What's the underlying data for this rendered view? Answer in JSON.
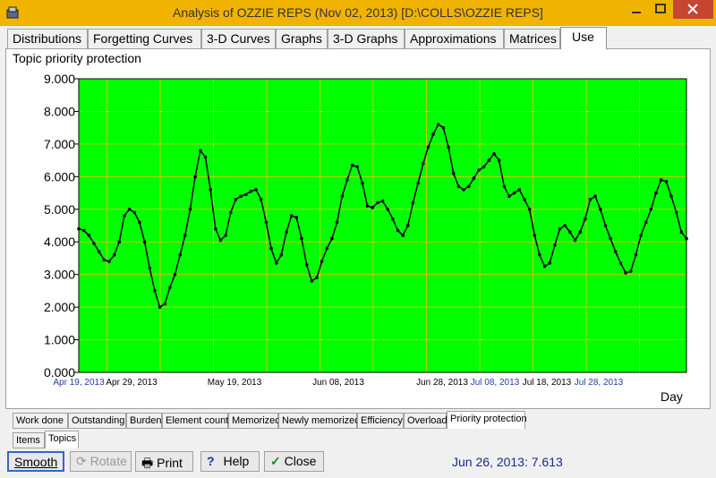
{
  "window": {
    "title": "Analysis of OZZIE REPS (Nov 02, 2013) [D:\\COLLS\\OZZIE REPS]"
  },
  "tabs": [
    {
      "label": "Distributions"
    },
    {
      "label": "Forgetting Curves"
    },
    {
      "label": "3-D Curves"
    },
    {
      "label": "Graphs"
    },
    {
      "label": "3-D Graphs"
    },
    {
      "label": "Approximations"
    },
    {
      "label": "Matrices"
    },
    {
      "label": "Use"
    }
  ],
  "active_tab": "Use",
  "panel": {
    "title": "Topic priority protection",
    "x_axis_label": "Day"
  },
  "chart_data": {
    "type": "line",
    "title": "Topic priority protection",
    "xlabel": "Day",
    "ylabel": "",
    "ylim": [
      0,
      9
    ],
    "y_ticks": [
      "0.000",
      "1.000",
      "2.000",
      "3.000",
      "4.000",
      "5.000",
      "6.000",
      "7.000",
      "8.000",
      "9.000"
    ],
    "x_ticks": [
      {
        "label": "Apr 19, 2013",
        "color": "#1f3fa0"
      },
      {
        "label": "Apr 29, 2013",
        "color": "#000000"
      },
      {
        "label": "May 19, 2013",
        "color": "#000000"
      },
      {
        "label": "Jun 08, 2013",
        "color": "#000000"
      },
      {
        "label": "Jun 28, 2013",
        "color": "#000000"
      },
      {
        "label": "Jul 08, 2013",
        "color": "#1f3fa0"
      },
      {
        "label": "Jul 18, 2013",
        "color": "#000000"
      },
      {
        "label": "Jul 28, 2013",
        "color": "#1f3fa0"
      }
    ],
    "background_color": "#00ff00",
    "grid_color": "#c8c800",
    "line_color": "#000000",
    "grid": true,
    "series": [
      {
        "values": [
          4.4,
          4.35,
          4.2,
          3.95,
          3.7,
          3.45,
          3.4,
          3.6,
          4.0,
          4.8,
          5.0,
          4.9,
          4.6,
          4.0,
          3.2,
          2.5,
          2.0,
          2.1,
          2.6,
          3.0,
          3.6,
          4.2,
          5.0,
          6.0,
          6.8,
          6.6,
          5.6,
          4.4,
          4.05,
          4.2,
          4.9,
          5.3,
          5.4,
          5.45,
          5.55,
          5.6,
          5.3,
          4.6,
          3.8,
          3.35,
          3.6,
          4.3,
          4.8,
          4.75,
          4.1,
          3.3,
          2.8,
          2.9,
          3.4,
          3.8,
          4.1,
          4.6,
          5.4,
          5.9,
          6.35,
          6.3,
          5.8,
          5.1,
          5.05,
          5.2,
          5.25,
          5.0,
          4.7,
          4.35,
          4.2,
          4.5,
          5.2,
          5.8,
          6.4,
          6.9,
          7.3,
          7.6,
          7.5,
          6.9,
          6.1,
          5.7,
          5.6,
          5.7,
          5.95,
          6.2,
          6.3,
          6.5,
          6.7,
          6.5,
          5.7,
          5.4,
          5.5,
          5.6,
          5.3,
          5.0,
          4.2,
          3.6,
          3.25,
          3.35,
          3.9,
          4.4,
          4.5,
          4.3,
          4.05,
          4.3,
          4.7,
          5.3,
          5.4,
          5.0,
          4.5,
          4.1,
          3.7,
          3.35,
          3.05,
          3.1,
          3.6,
          4.2,
          4.6,
          5.0,
          5.5,
          5.9,
          5.85,
          5.4,
          4.9,
          4.3,
          4.1
        ]
      }
    ]
  },
  "subtabs": [
    {
      "label": "Work done"
    },
    {
      "label": "Outstanding"
    },
    {
      "label": "Burden"
    },
    {
      "label": "Element count"
    },
    {
      "label": "Memorized"
    },
    {
      "label": "Newly memorized"
    },
    {
      "label": "Efficiency"
    },
    {
      "label": "Overload"
    },
    {
      "label": "Priority protection"
    }
  ],
  "active_subtab": "Priority protection",
  "subtabs2": [
    {
      "label": "Items"
    },
    {
      "label": "Topics"
    }
  ],
  "active_subtab2": "Topics",
  "buttons": {
    "smooth": "Smooth",
    "rotate": "Rotate",
    "print": "Print",
    "help": "Help",
    "close": "Close"
  },
  "status": "Jun 26, 2013: 7.613",
  "icons": {
    "app": "supermemo-icon",
    "print": "printer-icon",
    "help": "question-icon",
    "close": "checkmark-icon",
    "rotate": "rotate-icon"
  }
}
